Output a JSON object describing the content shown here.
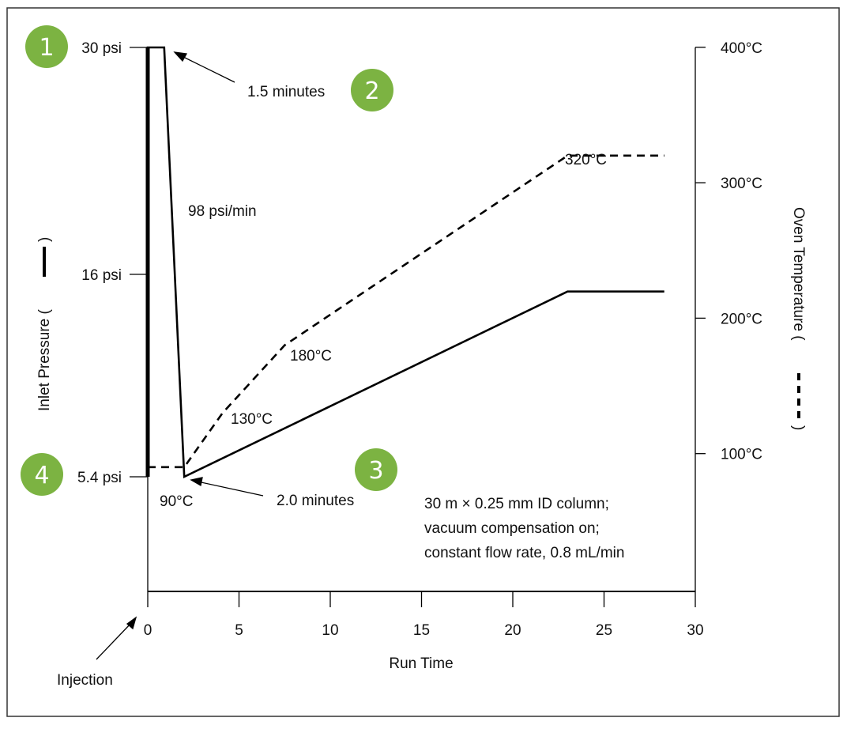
{
  "chart_data": {
    "type": "line",
    "xlabel": "Run Time",
    "ylabel_left": "Inlet Pressure (",
    "ylabel_right": "Oven Temperature (",
    "xlim": [
      0,
      30
    ],
    "x_ticks": [
      0,
      5,
      10,
      15,
      20,
      25,
      30
    ],
    "left_ticks": [
      {
        "value": 30,
        "label": "30 psi"
      },
      {
        "value": 16,
        "label": "16 psi"
      },
      {
        "value": 5.4,
        "label": "5.4 psi"
      }
    ],
    "right_ticks": [
      {
        "value": 400,
        "label": "400°C"
      },
      {
        "value": 300,
        "label": "300°C"
      },
      {
        "value": 200,
        "label": "200°C"
      },
      {
        "value": 100,
        "label": "100°C"
      }
    ],
    "grid": false,
    "series": [
      {
        "axis": "left",
        "style": "solid",
        "x": [
          0,
          0,
          0.9,
          2.0,
          23,
          28.3
        ],
        "y": [
          5.4,
          30,
          30,
          5.4,
          15.1,
          15.1
        ]
      },
      {
        "axis": "right",
        "style": "dashed",
        "x": [
          0,
          2.0,
          4.1,
          7.5,
          23,
          28.3
        ],
        "y": [
          90,
          90,
          130,
          180,
          320,
          320
        ]
      }
    ],
    "annotations": {
      "rate": "98 psi/min",
      "hold1": "1.5 minutes",
      "hold2": "2.0 minutes",
      "t90": "90°C",
      "t130": "130°C",
      "t180": "180°C",
      "t320": "320°C",
      "injection": "Injection",
      "note": [
        "30 m × 0.25 mm ID column;",
        "vacuum compensation on;",
        "constant flow rate, 0.8 mL/min"
      ]
    },
    "badges": [
      "1",
      "2",
      "3",
      "4"
    ],
    "badge_color": "#7cb342"
  }
}
